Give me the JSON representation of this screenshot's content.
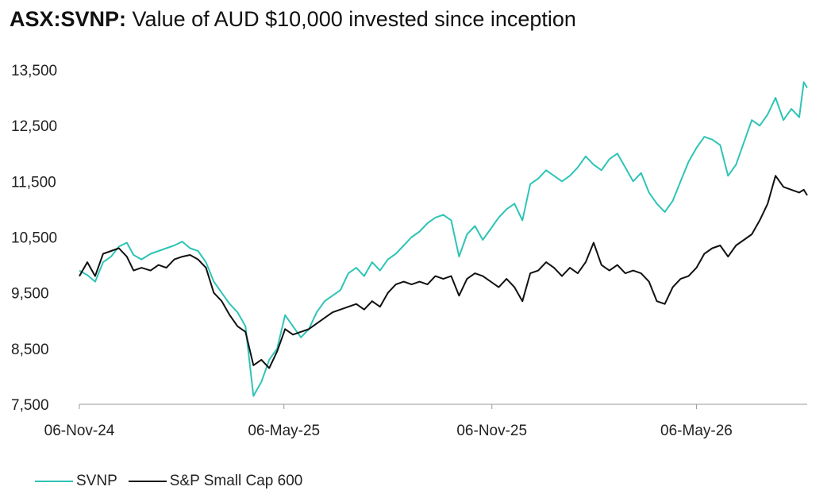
{
  "title": {
    "ticker": "ASX:SVNP:",
    "text": "Value of AUD $10,000 invested since inception"
  },
  "chart_data": {
    "type": "line",
    "title": "ASX:SVNP: Value of AUD $10,000 invested since inception",
    "xlabel": "",
    "ylabel": "",
    "xlim": [
      "2024-11-06",
      "2026-08-12"
    ],
    "ylim": [
      7500,
      13500
    ],
    "y_ticks": [
      7500,
      8500,
      9500,
      10500,
      11500,
      12500,
      13500
    ],
    "y_tick_labels": [
      "7,500",
      "8,500",
      "9,500",
      "10,500",
      "11,500",
      "12,500",
      "13,500"
    ],
    "x_ticks": [
      "2024-11-06",
      "2025-05-06",
      "2025-11-06",
      "2026-05-06"
    ],
    "x_tick_labels": [
      "06-Nov-24",
      "06-May-25",
      "06-Nov-25",
      "06-May-26"
    ],
    "grid": false,
    "legend": "bottom-left",
    "series": [
      {
        "name": "SVNP",
        "color": "#2ec4b6",
        "points": [
          [
            "2024-11-06",
            9900
          ],
          [
            "2024-11-13",
            9820
          ],
          [
            "2024-11-20",
            9700
          ],
          [
            "2024-11-27",
            10050
          ],
          [
            "2024-12-04",
            10150
          ],
          [
            "2024-12-11",
            10330
          ],
          [
            "2024-12-18",
            10400
          ],
          [
            "2024-12-24",
            10180
          ],
          [
            "2024-12-31",
            10100
          ],
          [
            "2025-01-08",
            10200
          ],
          [
            "2025-01-15",
            10250
          ],
          [
            "2025-01-22",
            10300
          ],
          [
            "2025-01-29",
            10350
          ],
          [
            "2025-02-05",
            10420
          ],
          [
            "2025-02-12",
            10300
          ],
          [
            "2025-02-19",
            10250
          ],
          [
            "2025-02-26",
            10050
          ],
          [
            "2025-03-05",
            9700
          ],
          [
            "2025-03-12",
            9500
          ],
          [
            "2025-03-19",
            9300
          ],
          [
            "2025-03-26",
            9150
          ],
          [
            "2025-04-02",
            8900
          ],
          [
            "2025-04-09",
            7650
          ],
          [
            "2025-04-16",
            7900
          ],
          [
            "2025-04-23",
            8300
          ],
          [
            "2025-04-30",
            8500
          ],
          [
            "2025-05-07",
            9100
          ],
          [
            "2025-05-14",
            8900
          ],
          [
            "2025-05-21",
            8700
          ],
          [
            "2025-05-28",
            8850
          ],
          [
            "2025-06-04",
            9150
          ],
          [
            "2025-06-11",
            9350
          ],
          [
            "2025-06-18",
            9450
          ],
          [
            "2025-06-25",
            9550
          ],
          [
            "2025-07-02",
            9850
          ],
          [
            "2025-07-09",
            9950
          ],
          [
            "2025-07-16",
            9800
          ],
          [
            "2025-07-23",
            10050
          ],
          [
            "2025-07-30",
            9900
          ],
          [
            "2025-08-06",
            10100
          ],
          [
            "2025-08-13",
            10200
          ],
          [
            "2025-08-20",
            10350
          ],
          [
            "2025-08-27",
            10500
          ],
          [
            "2025-09-03",
            10600
          ],
          [
            "2025-09-10",
            10750
          ],
          [
            "2025-09-17",
            10850
          ],
          [
            "2025-09-24",
            10900
          ],
          [
            "2025-10-01",
            10800
          ],
          [
            "2025-10-08",
            10150
          ],
          [
            "2025-10-15",
            10550
          ],
          [
            "2025-10-22",
            10700
          ],
          [
            "2025-10-29",
            10450
          ],
          [
            "2025-11-05",
            10650
          ],
          [
            "2025-11-12",
            10850
          ],
          [
            "2025-11-19",
            11000
          ],
          [
            "2025-11-26",
            11100
          ],
          [
            "2025-12-03",
            10800
          ],
          [
            "2025-12-10",
            11450
          ],
          [
            "2025-12-17",
            11550
          ],
          [
            "2025-12-24",
            11700
          ],
          [
            "2025-12-31",
            11600
          ],
          [
            "2026-01-07",
            11500
          ],
          [
            "2026-01-14",
            11600
          ],
          [
            "2026-01-21",
            11750
          ],
          [
            "2026-01-28",
            11950
          ],
          [
            "2026-02-04",
            11800
          ],
          [
            "2026-02-11",
            11700
          ],
          [
            "2026-02-18",
            11900
          ],
          [
            "2026-02-25",
            12000
          ],
          [
            "2026-03-04",
            11750
          ],
          [
            "2026-03-11",
            11500
          ],
          [
            "2026-03-18",
            11650
          ],
          [
            "2026-03-25",
            11300
          ],
          [
            "2026-04-01",
            11100
          ],
          [
            "2026-04-08",
            10950
          ],
          [
            "2026-04-15",
            11150
          ],
          [
            "2026-04-22",
            11500
          ],
          [
            "2026-04-29",
            11850
          ],
          [
            "2026-05-06",
            12100
          ],
          [
            "2026-05-13",
            12300
          ],
          [
            "2026-05-20",
            12250
          ],
          [
            "2026-05-27",
            12150
          ],
          [
            "2026-06-03",
            11600
          ],
          [
            "2026-06-10",
            11800
          ],
          [
            "2026-06-17",
            12200
          ],
          [
            "2026-06-24",
            12600
          ],
          [
            "2026-07-01",
            12500
          ],
          [
            "2026-07-08",
            12700
          ],
          [
            "2026-07-15",
            13000
          ],
          [
            "2026-07-22",
            12600
          ],
          [
            "2026-07-29",
            12800
          ],
          [
            "2026-08-05",
            12650
          ],
          [
            "2026-08-09",
            13280
          ],
          [
            "2026-08-12",
            13180
          ]
        ]
      },
      {
        "name": "S&P Small Cap 600",
        "color": "#111111",
        "points": [
          [
            "2024-11-06",
            9800
          ],
          [
            "2024-11-13",
            10050
          ],
          [
            "2024-11-20",
            9800
          ],
          [
            "2024-11-27",
            10200
          ],
          [
            "2024-12-04",
            10250
          ],
          [
            "2024-12-11",
            10300
          ],
          [
            "2024-12-18",
            10150
          ],
          [
            "2024-12-24",
            9900
          ],
          [
            "2024-12-31",
            9950
          ],
          [
            "2025-01-08",
            9900
          ],
          [
            "2025-01-15",
            10000
          ],
          [
            "2025-01-22",
            9950
          ],
          [
            "2025-01-29",
            10100
          ],
          [
            "2025-02-05",
            10150
          ],
          [
            "2025-02-12",
            10180
          ],
          [
            "2025-02-19",
            10100
          ],
          [
            "2025-02-26",
            9950
          ],
          [
            "2025-03-05",
            9500
          ],
          [
            "2025-03-12",
            9350
          ],
          [
            "2025-03-19",
            9100
          ],
          [
            "2025-03-26",
            8900
          ],
          [
            "2025-04-02",
            8800
          ],
          [
            "2025-04-09",
            8200
          ],
          [
            "2025-04-16",
            8300
          ],
          [
            "2025-04-23",
            8150
          ],
          [
            "2025-04-30",
            8450
          ],
          [
            "2025-05-07",
            8850
          ],
          [
            "2025-05-14",
            8750
          ],
          [
            "2025-05-21",
            8800
          ],
          [
            "2025-05-28",
            8850
          ],
          [
            "2025-06-04",
            8950
          ],
          [
            "2025-06-11",
            9050
          ],
          [
            "2025-06-18",
            9150
          ],
          [
            "2025-06-25",
            9200
          ],
          [
            "2025-07-02",
            9250
          ],
          [
            "2025-07-09",
            9300
          ],
          [
            "2025-07-16",
            9200
          ],
          [
            "2025-07-23",
            9350
          ],
          [
            "2025-07-30",
            9250
          ],
          [
            "2025-08-06",
            9500
          ],
          [
            "2025-08-13",
            9650
          ],
          [
            "2025-08-20",
            9700
          ],
          [
            "2025-08-27",
            9650
          ],
          [
            "2025-09-03",
            9700
          ],
          [
            "2025-09-10",
            9650
          ],
          [
            "2025-09-17",
            9800
          ],
          [
            "2025-09-24",
            9750
          ],
          [
            "2025-10-01",
            9800
          ],
          [
            "2025-10-08",
            9450
          ],
          [
            "2025-10-15",
            9750
          ],
          [
            "2025-10-22",
            9850
          ],
          [
            "2025-10-29",
            9800
          ],
          [
            "2025-11-05",
            9700
          ],
          [
            "2025-11-12",
            9600
          ],
          [
            "2025-11-19",
            9750
          ],
          [
            "2025-11-26",
            9600
          ],
          [
            "2025-12-03",
            9350
          ],
          [
            "2025-12-10",
            9850
          ],
          [
            "2025-12-17",
            9900
          ],
          [
            "2025-12-24",
            10050
          ],
          [
            "2025-12-31",
            9950
          ],
          [
            "2026-01-07",
            9800
          ],
          [
            "2026-01-14",
            9950
          ],
          [
            "2026-01-21",
            9850
          ],
          [
            "2026-01-28",
            10050
          ],
          [
            "2026-02-04",
            10400
          ],
          [
            "2026-02-11",
            10000
          ],
          [
            "2026-02-18",
            9900
          ],
          [
            "2026-02-25",
            10000
          ],
          [
            "2026-03-04",
            9850
          ],
          [
            "2026-03-11",
            9900
          ],
          [
            "2026-03-18",
            9850
          ],
          [
            "2026-03-25",
            9700
          ],
          [
            "2026-04-01",
            9350
          ],
          [
            "2026-04-08",
            9300
          ],
          [
            "2026-04-15",
            9600
          ],
          [
            "2026-04-22",
            9750
          ],
          [
            "2026-04-29",
            9800
          ],
          [
            "2026-05-06",
            9950
          ],
          [
            "2026-05-13",
            10200
          ],
          [
            "2026-05-20",
            10300
          ],
          [
            "2026-05-27",
            10350
          ],
          [
            "2026-06-03",
            10150
          ],
          [
            "2026-06-10",
            10350
          ],
          [
            "2026-06-17",
            10450
          ],
          [
            "2026-06-24",
            10550
          ],
          [
            "2026-07-01",
            10800
          ],
          [
            "2026-07-08",
            11100
          ],
          [
            "2026-07-15",
            11600
          ],
          [
            "2026-07-22",
            11400
          ],
          [
            "2026-07-29",
            11350
          ],
          [
            "2026-08-05",
            11300
          ],
          [
            "2026-08-09",
            11350
          ],
          [
            "2026-08-12",
            11250
          ]
        ]
      }
    ]
  }
}
